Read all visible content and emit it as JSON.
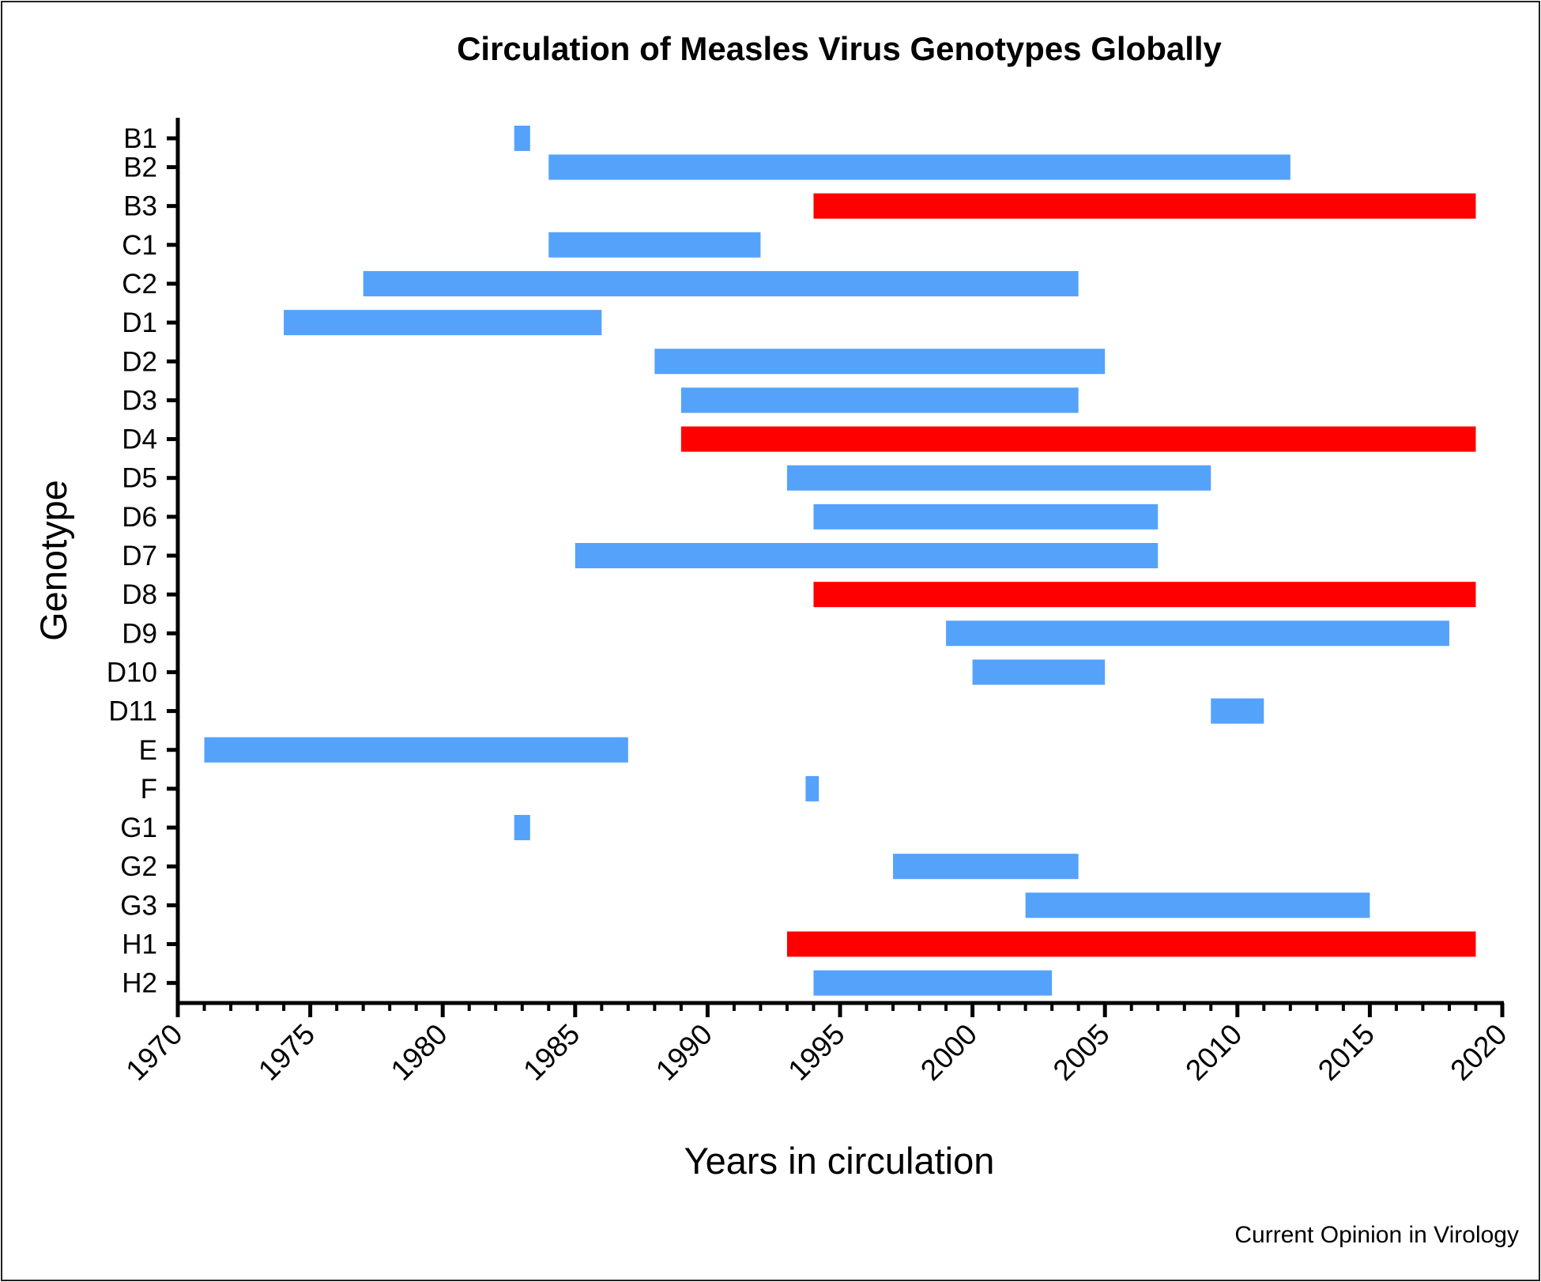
{
  "chart_data": {
    "type": "bar",
    "orientation": "horizontal-range",
    "title": "Circulation of Measles Virus Genotypes Globally",
    "xlabel": "Years in circulation",
    "ylabel": "Genotype",
    "xlim": [
      1970,
      2020
    ],
    "xticks": [
      "1970",
      "1975",
      "1980",
      "1985",
      "1990",
      "1995",
      "2000",
      "2005",
      "2010",
      "2015",
      "2020"
    ],
    "colors": {
      "circulating": "#55a2fb",
      "currently_circulating": "#ff0000"
    },
    "series": [
      {
        "genotype": "B1",
        "start": 1982.7,
        "end": 1983.3,
        "color": "#55a2fb"
      },
      {
        "genotype": "B2",
        "start": 1984,
        "end": 2012,
        "color": "#55a2fb"
      },
      {
        "genotype": "B3",
        "start": 1994,
        "end": 2019,
        "color": "#ff0000"
      },
      {
        "genotype": "C1",
        "start": 1984,
        "end": 1992,
        "color": "#55a2fb"
      },
      {
        "genotype": "C2",
        "start": 1977,
        "end": 2004,
        "color": "#55a2fb"
      },
      {
        "genotype": "D1",
        "start": 1974,
        "end": 1986,
        "color": "#55a2fb"
      },
      {
        "genotype": "D2",
        "start": 1988,
        "end": 2005,
        "color": "#55a2fb"
      },
      {
        "genotype": "D3",
        "start": 1989,
        "end": 2004,
        "color": "#55a2fb"
      },
      {
        "genotype": "D4",
        "start": 1989,
        "end": 2019,
        "color": "#ff0000"
      },
      {
        "genotype": "D5",
        "start": 1993,
        "end": 2009,
        "color": "#55a2fb"
      },
      {
        "genotype": "D6",
        "start": 1994,
        "end": 2007,
        "color": "#55a2fb"
      },
      {
        "genotype": "D7",
        "start": 1985,
        "end": 2007,
        "color": "#55a2fb"
      },
      {
        "genotype": "D8",
        "start": 1994,
        "end": 2019,
        "color": "#ff0000"
      },
      {
        "genotype": "D9",
        "start": 1999,
        "end": 2018,
        "color": "#55a2fb"
      },
      {
        "genotype": "D10",
        "start": 2000,
        "end": 2005,
        "color": "#55a2fb"
      },
      {
        "genotype": "D11",
        "start": 2009,
        "end": 2011,
        "color": "#55a2fb"
      },
      {
        "genotype": "E",
        "start": 1971,
        "end": 1987,
        "color": "#55a2fb"
      },
      {
        "genotype": "F",
        "start": 1993.7,
        "end": 1994.2,
        "color": "#55a2fb"
      },
      {
        "genotype": "G1",
        "start": 1982.7,
        "end": 1983.3,
        "color": "#55a2fb"
      },
      {
        "genotype": "G2",
        "start": 1997,
        "end": 2004,
        "color": "#55a2fb"
      },
      {
        "genotype": "G3",
        "start": 2002,
        "end": 2015,
        "color": "#55a2fb"
      },
      {
        "genotype": "H1",
        "start": 1993,
        "end": 2019,
        "color": "#ff0000"
      },
      {
        "genotype": "H2",
        "start": 1994,
        "end": 2003,
        "color": "#55a2fb"
      }
    ],
    "grid": false,
    "legend": "none"
  },
  "credit": "Current Opinion in Virology"
}
